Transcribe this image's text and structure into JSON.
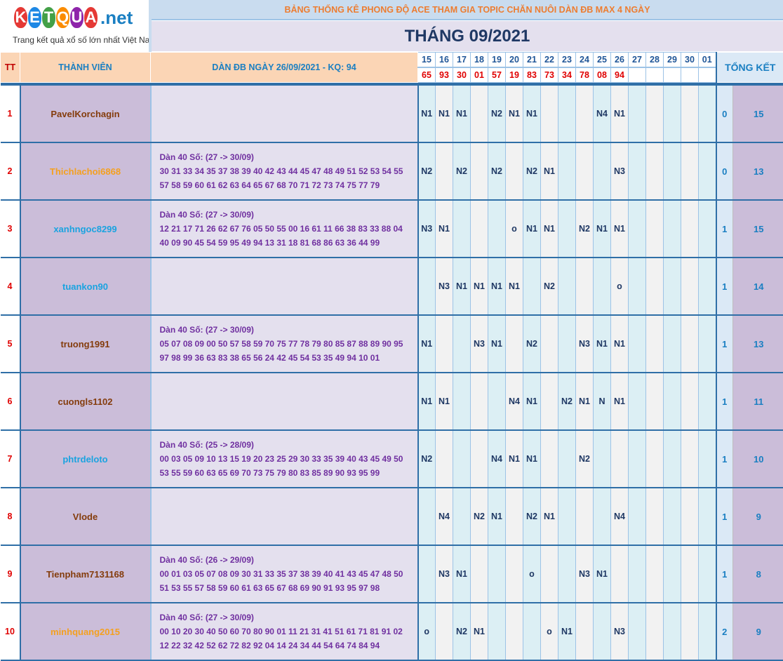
{
  "logo": {
    "letters": [
      "K",
      "E",
      "T",
      "Q",
      "U",
      "A"
    ],
    "letter_colors": [
      "#e53935",
      "#1e88e5",
      "#43a047",
      "#fb8c00",
      "#8e24aa",
      "#e53935"
    ],
    "suffix": ".net",
    "tagline": "Trang kết quả xổ số lớn nhất Việt Nam"
  },
  "header": {
    "title": "BẢNG THỐNG KÊ PHONG ĐỘ ACE THAM GIA TOPIC CHĂN NUÔI DÀN ĐB MAX 4 NGÀY",
    "month": "THÁNG 09/2021"
  },
  "columns": {
    "tt": "TT",
    "member": "THÀNH VIÊN",
    "dan": "DÀN ĐB NGÀY 26/09/2021 - KQ: 94",
    "summary": "TỔNG KẾT"
  },
  "dates": [
    "15",
    "16",
    "17",
    "18",
    "19",
    "20",
    "21",
    "22",
    "23",
    "24",
    "25",
    "26",
    "27",
    "28",
    "29",
    "30",
    "01"
  ],
  "results": [
    "65",
    "93",
    "30",
    "01",
    "57",
    "19",
    "83",
    "73",
    "34",
    "78",
    "08",
    "94",
    "",
    "",
    "",
    "",
    ""
  ],
  "rows": [
    {
      "tt": "1",
      "name": "PavelKorchagin",
      "color": "#843c0c",
      "dan": [],
      "marks": [
        "N1",
        "N1",
        "N1",
        "",
        "N2",
        "N1",
        "N1",
        "",
        "",
        "",
        "N4",
        "N1",
        "",
        "",
        "",
        "",
        ""
      ],
      "a": "0",
      "b": "15"
    },
    {
      "tt": "2",
      "name": "Thichlachoi6868",
      "color": "#f4a020",
      "dan": [
        "Dàn 40 Số: (27 -> 30/09)",
        "30 31 33 34 35 37 38 39 40 42 43 44 45 47 48 49 51 52 53 54 55",
        "57 58 59 60 61 62 63 64 65 67 68 70 71 72 73 74 75 77 79"
      ],
      "marks": [
        "N2",
        "",
        "N2",
        "",
        "N2",
        "",
        "N2",
        "N1",
        "",
        "",
        "",
        "N3",
        "",
        "",
        "",
        "",
        ""
      ],
      "a": "0",
      "b": "13"
    },
    {
      "tt": "3",
      "name": "xanhngoc8299",
      "color": "#1aa3e0",
      "dan": [
        "Dàn 40 Số: (27 -> 30/09)",
        "12 21 17 71 26 62 67 76 05 50 55 00 16 61 11 66 38 83 33 88 04",
        "40 09 90 45 54 59 95 49 94 13 31 18 81 68 86 63 36 44 99"
      ],
      "marks": [
        "N3",
        "N1",
        "",
        "",
        "",
        "o",
        "N1",
        "N1",
        "",
        "N2",
        "N1",
        "N1",
        "",
        "",
        "",
        "",
        ""
      ],
      "a": "1",
      "b": "15"
    },
    {
      "tt": "4",
      "name": "tuankon90",
      "color": "#1aa3e0",
      "dan": [],
      "marks": [
        "",
        "N3",
        "N1",
        "N1",
        "N1",
        "N1",
        "",
        "N2",
        "",
        "",
        "",
        "o",
        "",
        "",
        "",
        "",
        ""
      ],
      "a": "1",
      "b": "14"
    },
    {
      "tt": "5",
      "name": "truong1991",
      "color": "#843c0c",
      "dan": [
        "Dàn 40 Số: (27 -> 30/09)",
        "05 07 08 09 00 50 57 58 59 70 75 77 78 79 80 85 87 88 89 90 95",
        "97 98 99 36 63 83 38 65 56 24 42 45 54 53 35 49 94 10 01"
      ],
      "marks": [
        "N1",
        "",
        "",
        "N3",
        "N1",
        "",
        "N2",
        "",
        "",
        "N3",
        "N1",
        "N1",
        "",
        "",
        "",
        "",
        ""
      ],
      "a": "1",
      "b": "13"
    },
    {
      "tt": "6",
      "name": "cuongls1102",
      "color": "#843c0c",
      "dan": [],
      "marks": [
        "N1",
        "N1",
        "",
        "",
        "",
        "N4",
        "N1",
        "",
        "N2",
        "N1",
        "N",
        "N1",
        "",
        "",
        "",
        "",
        ""
      ],
      "a": "1",
      "b": "11"
    },
    {
      "tt": "7",
      "name": "phtrdeloto",
      "color": "#1aa3e0",
      "dan": [
        "Dàn 40 Số: (25 -> 28/09)",
        "00 03 05 09 10 13 15 19 20 23 25 29 30 33 35 39 40 43 45 49 50",
        "53 55 59 60 63 65 69 70 73 75 79 80 83 85 89 90 93 95 99"
      ],
      "marks": [
        "N2",
        "",
        "",
        "",
        "N4",
        "N1",
        "N1",
        "",
        "",
        "N2",
        "",
        "",
        "",
        "",
        "",
        "",
        ""
      ],
      "a": "1",
      "b": "10"
    },
    {
      "tt": "8",
      "name": "Vlode",
      "color": "#843c0c",
      "dan": [],
      "marks": [
        "",
        "N4",
        "",
        "N2",
        "N1",
        "",
        "N2",
        "N1",
        "",
        "",
        "",
        "N4",
        "",
        "",
        "",
        "",
        ""
      ],
      "a": "1",
      "b": "9"
    },
    {
      "tt": "9",
      "name": "Tienpham7131168",
      "color": "#843c0c",
      "dan": [
        "Dàn 40 Số: (26 -> 29/09)",
        "00 01 03 05 07 08 09 30 31 33 35 37 38 39 40 41 43 45 47 48 50",
        "51 53 55 57 58 59 60 61 63 65 67 68 69 90 91 93 95 97 98"
      ],
      "marks": [
        "",
        "N3",
        "N1",
        "",
        "",
        "",
        "o",
        "",
        "",
        "N3",
        "N1",
        "",
        "",
        "",
        "",
        "",
        ""
      ],
      "a": "1",
      "b": "8"
    },
    {
      "tt": "10",
      "name": "minhquang2015",
      "color": "#f4a020",
      "dan": [
        "Dàn 40 Số: (27 -> 30/09)",
        "00 10 20 30 40 50 60 70 80 90 01 11 21 31 41 51 61 71 81 91 02",
        "12 22 32 42 52 62 72 82 92 04 14 24 34 44 54 64 74 84 94"
      ],
      "marks": [
        "o",
        "",
        "N2",
        "N1",
        "",
        "",
        "",
        "o",
        "N1",
        "",
        "",
        "N3",
        "",
        "",
        "",
        "",
        ""
      ],
      "a": "2",
      "b": "9"
    }
  ]
}
